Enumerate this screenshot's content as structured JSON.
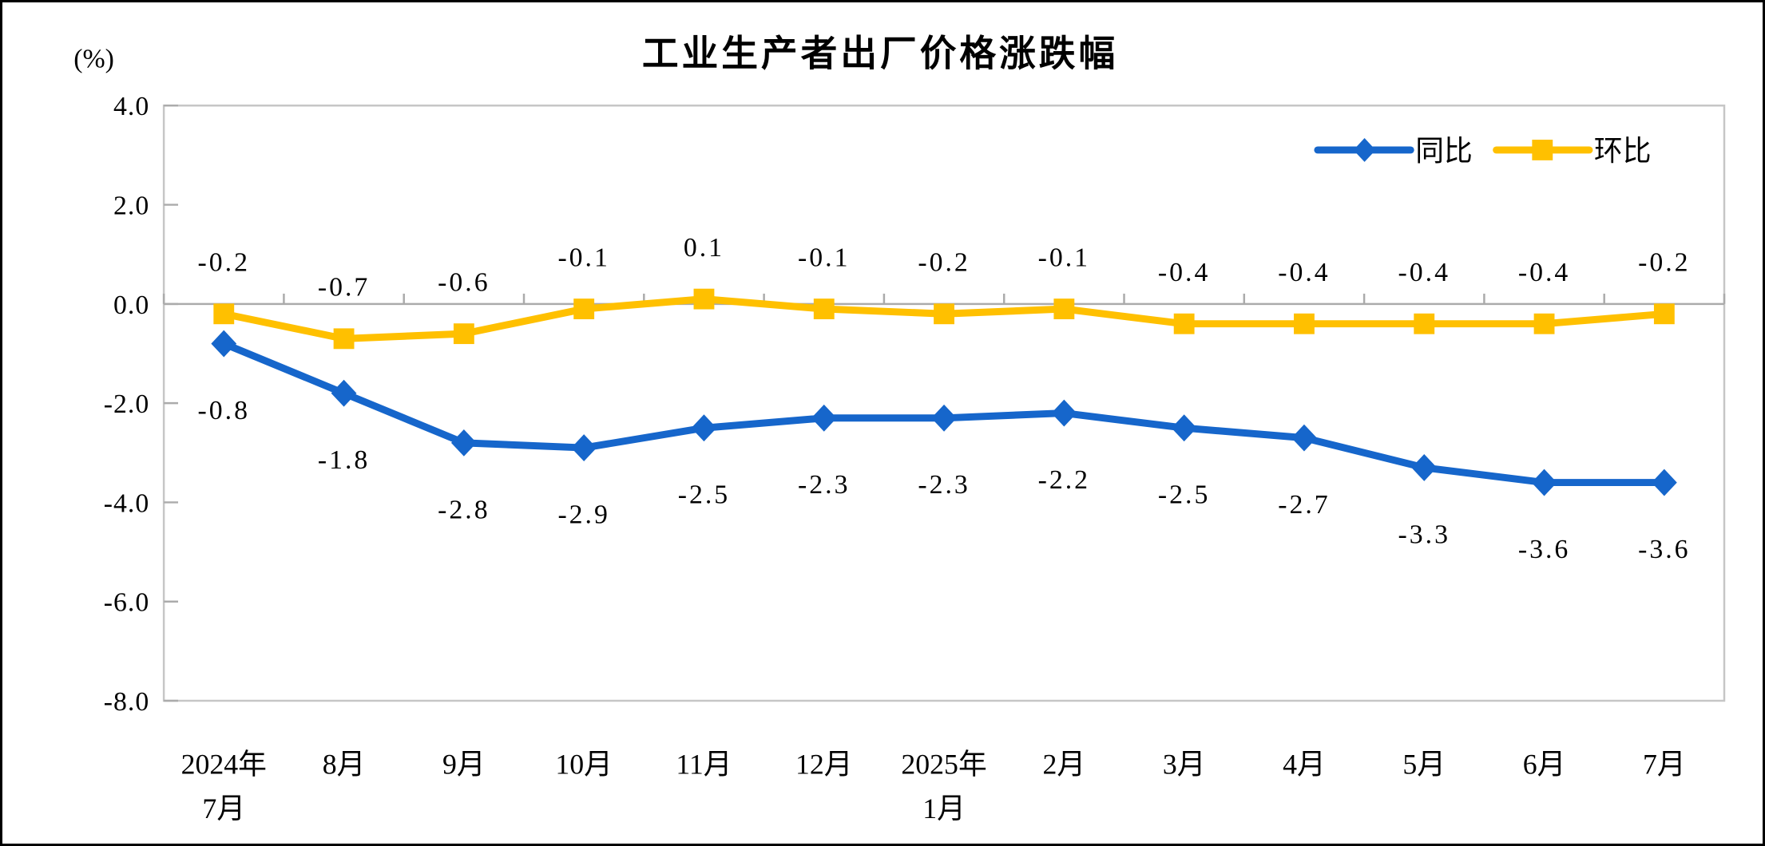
{
  "chart_data": {
    "type": "line",
    "title": "工业生产者出厂价格涨跌幅",
    "unit_label": "(%)",
    "categories": [
      [
        "2024年",
        "7月"
      ],
      [
        "8月"
      ],
      [
        "9月"
      ],
      [
        "10月"
      ],
      [
        "11月"
      ],
      [
        "12月"
      ],
      [
        "2025年",
        "1月"
      ],
      [
        "2月"
      ],
      [
        "3月"
      ],
      [
        "4月"
      ],
      [
        "5月"
      ],
      [
        "6月"
      ],
      [
        "7月"
      ]
    ],
    "series": [
      {
        "name": "同比",
        "marker": "diamond",
        "color": "#1666CB",
        "values": [
          -0.8,
          -1.8,
          -2.8,
          -2.9,
          -2.5,
          -2.3,
          -2.3,
          -2.2,
          -2.5,
          -2.7,
          -3.3,
          -3.6,
          -3.6
        ],
        "labels": [
          "-0.8",
          "-1.8",
          "-2.8",
          "-2.9",
          "-2.5",
          "-2.3",
          "-2.3",
          "-2.2",
          "-2.5",
          "-2.7",
          "-3.3",
          "-3.6",
          "-3.6"
        ]
      },
      {
        "name": "环比",
        "marker": "square",
        "color": "#FFC000",
        "values": [
          -0.2,
          -0.7,
          -0.6,
          -0.1,
          0.1,
          -0.1,
          -0.2,
          -0.1,
          -0.4,
          -0.4,
          -0.4,
          -0.4,
          -0.2
        ],
        "labels": [
          "-0.2",
          "-0.7",
          "-0.6",
          "-0.1",
          "0.1",
          "-0.1",
          "-0.2",
          "-0.1",
          "-0.4",
          "-0.4",
          "-0.4",
          "-0.4",
          "-0.2"
        ]
      }
    ],
    "y_ticks": [
      "4.0",
      "2.0",
      "0.0",
      "-2.0",
      "-4.0",
      "-6.0",
      "-8.0"
    ],
    "ylim": [
      -8.0,
      4.0
    ],
    "zero_baseline": 0.0,
    "grid": false,
    "legend_position": "top-right",
    "colors": {
      "plot_border": "#C6C6C6",
      "zero_line": "#ABABAB",
      "tick": "#ABABAB",
      "text": "#000000"
    }
  }
}
